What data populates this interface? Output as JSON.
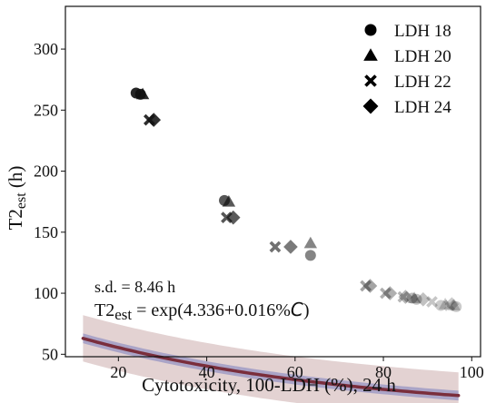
{
  "chart_data": {
    "type": "scatter",
    "xlabel": "Cytotoxicity, 100-LDH (%), 24 h",
    "ylabel_main": "T2",
    "ylabel_sub": "est",
    "ylabel_unit": " (h)",
    "xlim": [
      8,
      102
    ],
    "ylim": [
      48,
      335
    ],
    "x_ticks": [
      20,
      40,
      60,
      80,
      100
    ],
    "y_ticks": [
      50,
      100,
      150,
      200,
      250,
      300
    ],
    "grid": false,
    "legend_position": "top-right",
    "series": [
      {
        "name": "LDH 18",
        "marker": "circle",
        "points": [
          [
            24,
            264
          ],
          [
            25,
            263
          ],
          [
            44,
            176
          ],
          [
            63.5,
            131
          ],
          [
            86.5,
            96
          ],
          [
            87.5,
            95
          ],
          [
            93,
            90
          ],
          [
            96.5,
            89
          ]
        ]
      },
      {
        "name": "LDH 20",
        "marker": "triangle",
        "points": [
          [
            25.5,
            263
          ],
          [
            45,
            175
          ],
          [
            63.5,
            141
          ],
          [
            87,
            96
          ],
          [
            94,
            91
          ],
          [
            96,
            90
          ]
        ]
      },
      {
        "name": "LDH 22",
        "marker": "x",
        "points": [
          [
            27,
            242
          ],
          [
            44.5,
            162
          ],
          [
            55.5,
            138
          ],
          [
            76,
            106
          ],
          [
            80.5,
            100
          ],
          [
            84.5,
            97
          ],
          [
            91,
            93
          ],
          [
            95,
            90
          ]
        ]
      },
      {
        "name": "LDH 24",
        "marker": "diamond",
        "points": [
          [
            28,
            242
          ],
          [
            46,
            162
          ],
          [
            59,
            138
          ],
          [
            77,
            106
          ],
          [
            81.5,
            100
          ],
          [
            85,
            97
          ],
          [
            89,
            95
          ],
          [
            95.5,
            91
          ]
        ]
      }
    ],
    "fit": {
      "intercept": 4.336,
      "slope": -0.016,
      "x_range": [
        12,
        97
      ]
    },
    "prediction_band_halfwidth": 19,
    "confidence_band_halfwidth": 4,
    "colors": {
      "fit_line": "#7a2e3c",
      "prediction_band": "#d9c3c3",
      "confidence_band": "#9b98c4",
      "marker": "#111111"
    },
    "annotations": {
      "sd": "s.d. = 8.46 h",
      "eq_main": "T2",
      "eq_sub": "est",
      "eq_mid": " = exp(4.336+0.016%",
      "eq_var": "C",
      "eq_end": ")"
    }
  }
}
